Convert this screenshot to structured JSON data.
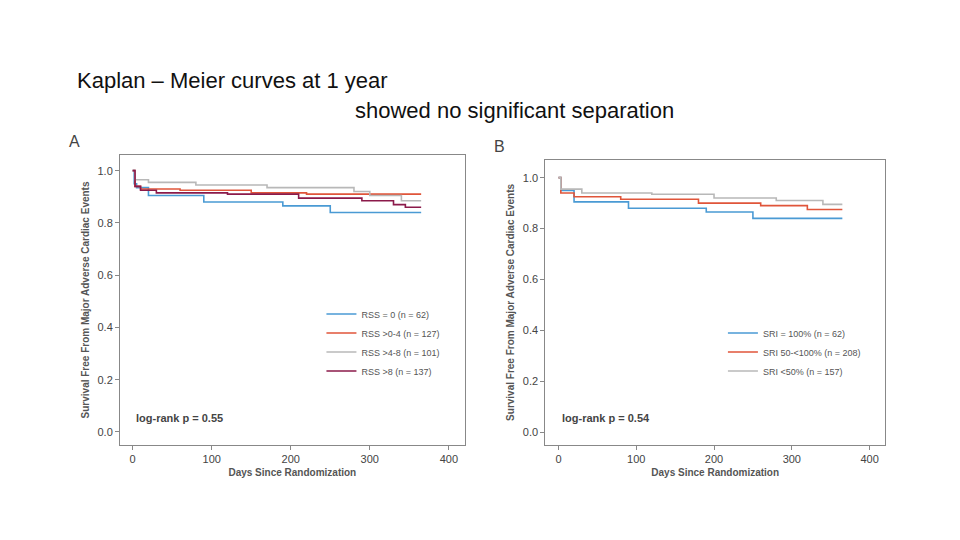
{
  "slide_title": {
    "line1": "Kaplan – Meier curves at 1 year",
    "line2": "showed no significant separation"
  },
  "chart_data": [
    {
      "type": "step",
      "panel_label": "A",
      "annotation": "log-rank p = 0.55",
      "x_label": "Days Since Randomization",
      "y_label": "Survival Free From Major Adverse Cardiac Events",
      "xlim": [
        -16,
        420
      ],
      "xticks": [
        0,
        100,
        200,
        300,
        400
      ],
      "ylim": [
        -0.05,
        1.06
      ],
      "yticks": [
        {
          "value": 0,
          "label": "0.0"
        },
        0.2,
        0.4,
        0.6,
        0.8,
        {
          "value": 1,
          "label": "1.0"
        }
      ],
      "grid": false,
      "legend": "lower right",
      "x": [
        0,
        2,
        3,
        5,
        10,
        20,
        30,
        60,
        80,
        90,
        120,
        150,
        170,
        190,
        210,
        220,
        250,
        280,
        290,
        300,
        330,
        340,
        345,
        365
      ],
      "series": [
        {
          "name": "RSS = 0 (n = 62)",
          "color": "#4a9ad4",
          "values": [
            1,
            0.95,
            0.95,
            0.935,
            0.935,
            0.905,
            0.905,
            0.905,
            0.905,
            0.88,
            0.88,
            0.88,
            0.88,
            0.865,
            0.865,
            0.865,
            0.84,
            0.84,
            0.84,
            0.84,
            0.84,
            0.84,
            0.84,
            0.84
          ]
        },
        {
          "name": "RSS >0-4 (n = 127)",
          "color": "#e0553a",
          "values": [
            1,
            1,
            0.94,
            0.94,
            0.93,
            0.93,
            0.93,
            0.925,
            0.925,
            0.925,
            0.925,
            0.915,
            0.915,
            0.915,
            0.915,
            0.91,
            0.91,
            0.91,
            0.91,
            0.91,
            0.91,
            0.91,
            0.91,
            0.91
          ]
        },
        {
          "name": "RSS >4-8 (n = 101)",
          "color": "#b8b8b8",
          "values": [
            1,
            1,
            0.965,
            0.965,
            0.965,
            0.955,
            0.955,
            0.955,
            0.945,
            0.945,
            0.945,
            0.945,
            0.935,
            0.935,
            0.935,
            0.935,
            0.935,
            0.92,
            0.92,
            0.905,
            0.905,
            0.885,
            0.885,
            0.885
          ]
        },
        {
          "name": "RSS >8 (n = 137)",
          "color": "#8b1a4a",
          "values": [
            1,
            1,
            0.94,
            0.94,
            0.925,
            0.925,
            0.915,
            0.915,
            0.915,
            0.915,
            0.91,
            0.91,
            0.91,
            0.91,
            0.895,
            0.895,
            0.895,
            0.895,
            0.885,
            0.885,
            0.87,
            0.87,
            0.86,
            0.86
          ]
        }
      ]
    },
    {
      "type": "step",
      "panel_label": "B",
      "annotation": "log-rank p = 0.54",
      "x_label": "Days Since Randomization",
      "y_label": "Survival Free From Major Adverse Cardiac Events",
      "xlim": [
        -17,
        420
      ],
      "xticks": [
        0,
        100,
        200,
        300,
        400
      ],
      "ylim": [
        -0.05,
        1.07
      ],
      "yticks": [
        {
          "value": 0,
          "label": "0.0"
        },
        0.2,
        0.4,
        0.6,
        0.8,
        {
          "value": 1,
          "label": "1.0"
        }
      ],
      "grid": false,
      "legend": "lower right",
      "x": [
        0,
        3,
        20,
        30,
        80,
        90,
        120,
        180,
        190,
        200,
        250,
        260,
        280,
        320,
        340,
        365
      ],
      "series": [
        {
          "name": "SRI = 100% (n = 62)",
          "color": "#4a9ad4",
          "values": [
            1,
            0.95,
            0.905,
            0.905,
            0.905,
            0.88,
            0.88,
            0.88,
            0.865,
            0.865,
            0.84,
            0.84,
            0.84,
            0.84,
            0.84,
            0.84
          ]
        },
        {
          "name": "SRI 50-<100% (n = 208)",
          "color": "#e0553a",
          "values": [
            1,
            0.94,
            0.925,
            0.925,
            0.915,
            0.915,
            0.915,
            0.9,
            0.9,
            0.9,
            0.9,
            0.89,
            0.89,
            0.875,
            0.875,
            0.875
          ]
        },
        {
          "name": "SRI <50% (n = 157)",
          "color": "#b8b8b8",
          "values": [
            1,
            0.955,
            0.955,
            0.94,
            0.94,
            0.94,
            0.935,
            0.935,
            0.935,
            0.92,
            0.92,
            0.92,
            0.91,
            0.91,
            0.895,
            0.895
          ]
        }
      ]
    }
  ]
}
